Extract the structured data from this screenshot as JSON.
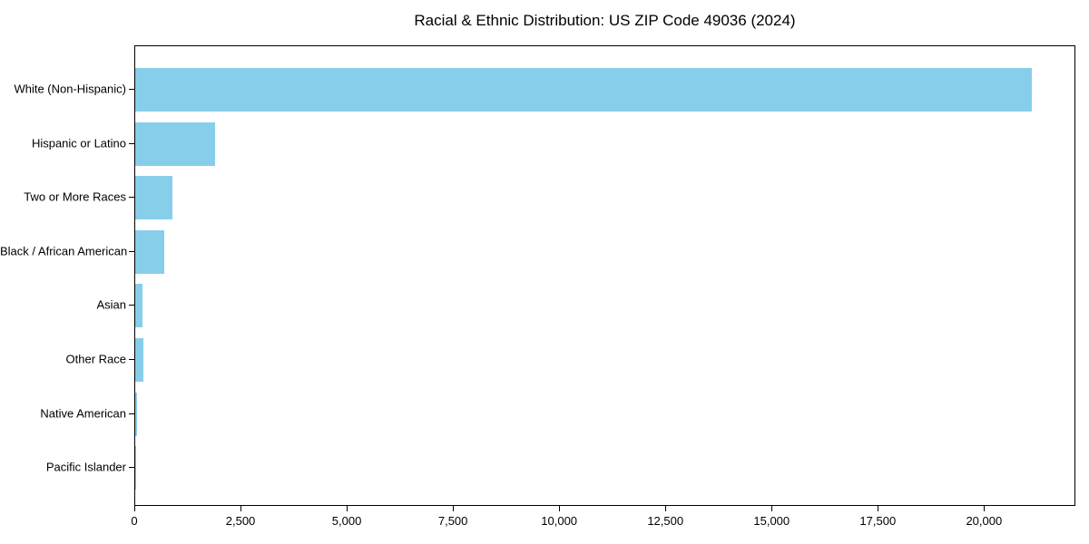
{
  "title": "Racial & Ethnic Distribution: US ZIP Code 49036 (2024)",
  "chart_data": {
    "type": "bar",
    "orientation": "horizontal",
    "title": "Racial & Ethnic Distribution: US ZIP Code 49036 (2024)",
    "xlabel": "",
    "ylabel": "",
    "categories": [
      "White (Non-Hispanic)",
      "Hispanic or Latino",
      "Two or More Races",
      "Black / African American",
      "Asian",
      "Other Race",
      "Native American",
      "Pacific Islander"
    ],
    "values": [
      21100,
      1890,
      870,
      690,
      180,
      200,
      35,
      5
    ],
    "xlim": [
      0,
      22150
    ],
    "xticks": [
      0,
      2500,
      5000,
      7500,
      10000,
      12500,
      15000,
      17500,
      20000
    ],
    "xtick_labels": [
      "0",
      "2,500",
      "5,000",
      "7,500",
      "10,000",
      "12,500",
      "15,000",
      "17,500",
      "20,000"
    ],
    "bar_color": "#87CEEB",
    "grid": false,
    "legend_position": "none"
  }
}
